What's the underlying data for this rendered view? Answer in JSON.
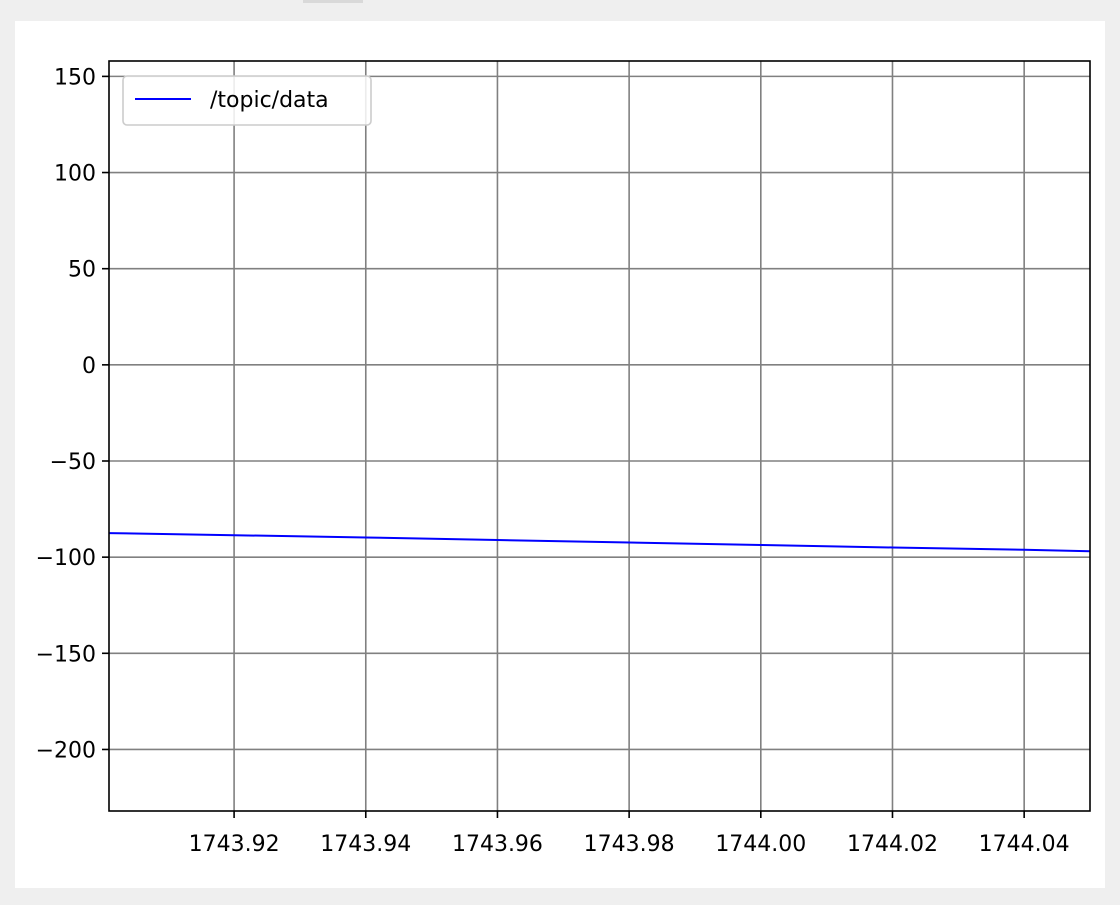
{
  "chart_data": {
    "type": "line",
    "title": "",
    "xlabel": "",
    "ylabel": "",
    "xlim": [
      1743.901,
      1744.05
    ],
    "ylim": [
      -232,
      158
    ],
    "grid": true,
    "legend_position": "top-left",
    "x_ticks": [
      1743.92,
      1743.94,
      1743.96,
      1743.98,
      1744.0,
      1744.02,
      1744.04
    ],
    "x_tick_labels": [
      "1743.92",
      "1743.94",
      "1743.96",
      "1743.98",
      "1744.00",
      "1744.02",
      "1744.04"
    ],
    "y_ticks": [
      150,
      100,
      50,
      0,
      -50,
      -100,
      -150,
      -200
    ],
    "y_tick_labels": [
      "150",
      "100",
      "50",
      "0",
      "−50",
      "−100",
      "−150",
      "−200"
    ],
    "series": [
      {
        "name": "/topic/data",
        "color": "#0000ff",
        "x": [
          1743.901,
          1743.92,
          1743.94,
          1743.96,
          1743.98,
          1744.0,
          1744.02,
          1744.04,
          1744.05
        ],
        "y": [
          -87.5,
          -88.6,
          -89.8,
          -91.1,
          -92.4,
          -93.7,
          -95.0,
          -96.2,
          -96.9
        ]
      }
    ]
  }
}
